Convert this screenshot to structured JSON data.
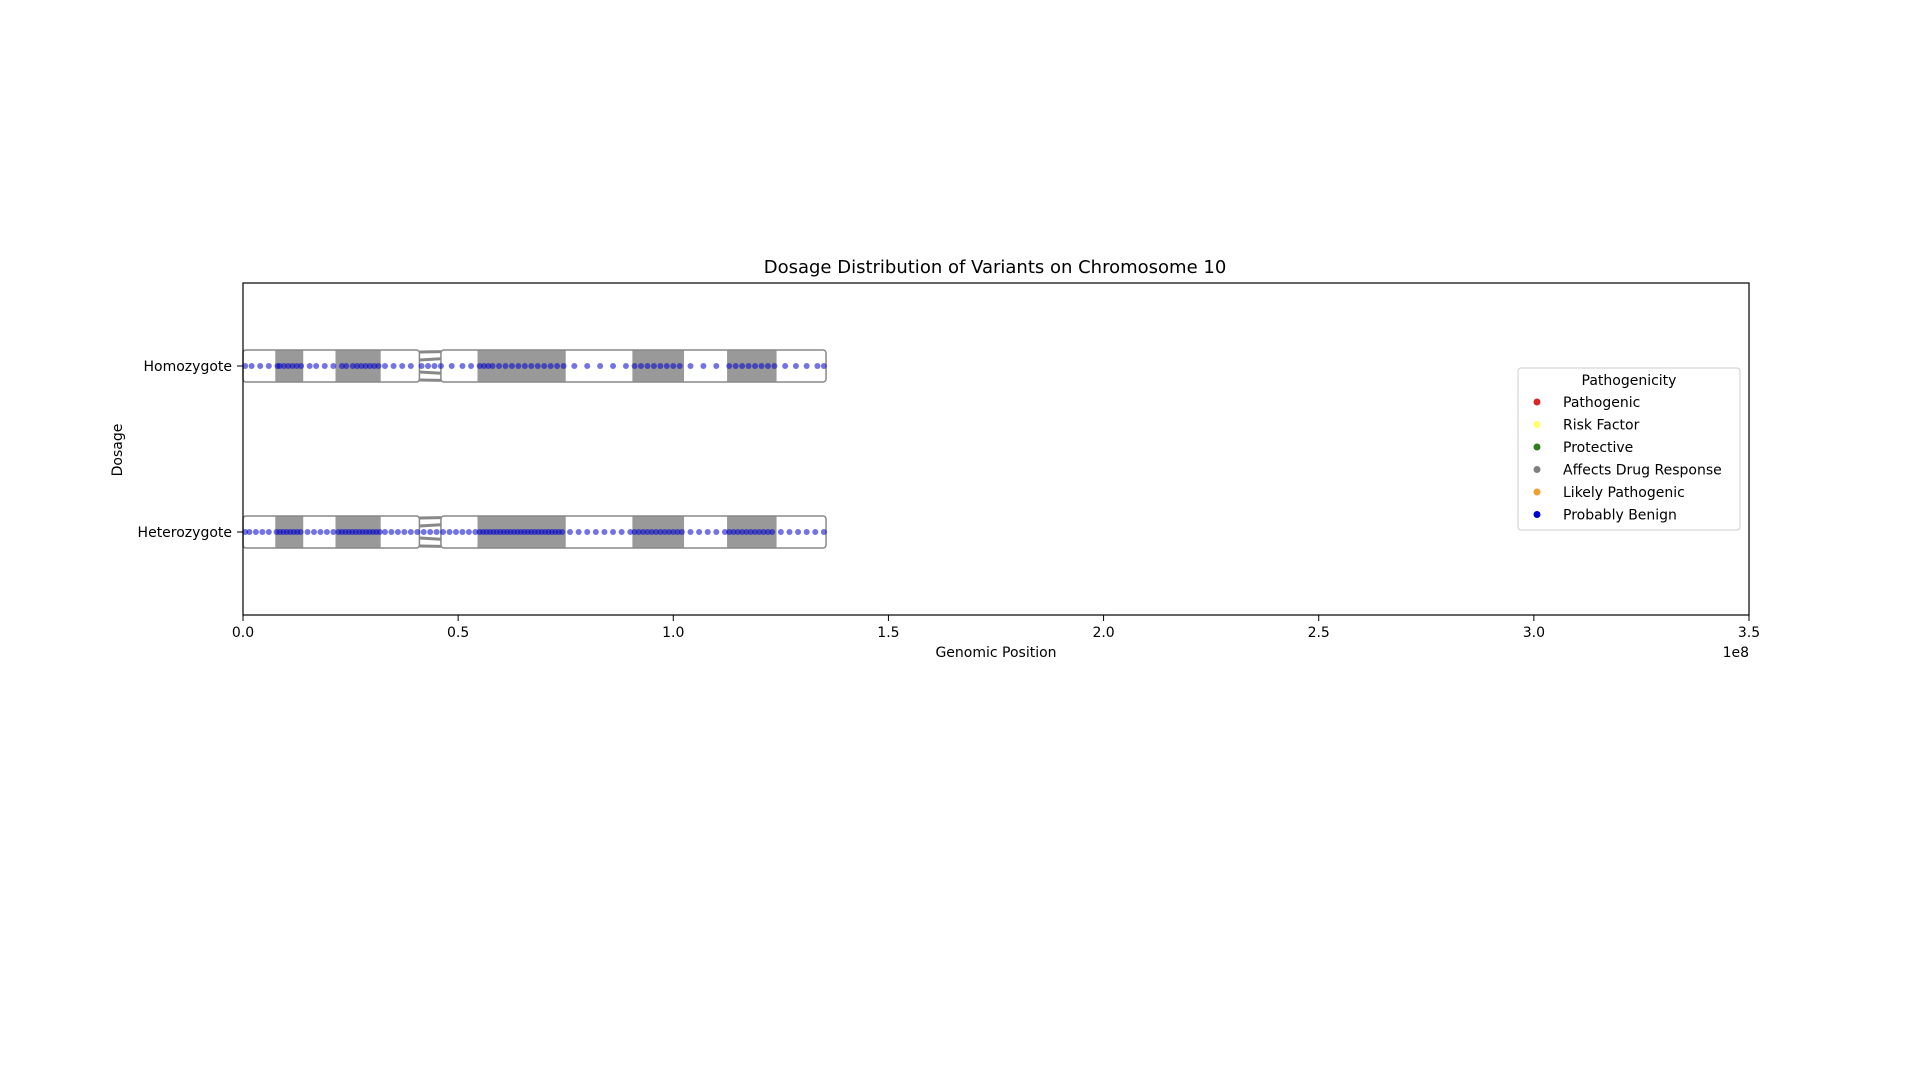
{
  "chart_data": {
    "type": "scatter",
    "title": "Dosage Distribution of Variants on Chromosome 10",
    "xlabel": "Genomic Position",
    "ylabel": "Dosage",
    "x_offset_label": "1e8",
    "xlim": [
      0,
      350000000
    ],
    "xticks": [
      0,
      50000000,
      100000000,
      150000000,
      200000000,
      250000000,
      300000000,
      350000000
    ],
    "xtick_labels": [
      "0.0",
      "0.5",
      "1.0",
      "1.5",
      "2.0",
      "2.5",
      "3.0",
      "3.5"
    ],
    "categories": [
      "Heterozygote",
      "Homozygote"
    ],
    "grid": false,
    "chromosome": {
      "length": 135500000,
      "centromere": [
        41000000,
        46000000
      ],
      "dark_bands": [
        [
          7500000,
          14000000
        ],
        [
          21500000,
          32000000
        ],
        [
          54500000,
          75000000
        ],
        [
          90500000,
          102500000
        ],
        [
          112500000,
          124000000
        ]
      ]
    },
    "legend": {
      "title": "Pathogenicity",
      "placement": "center-right",
      "entries": [
        {
          "label": "Pathogenic",
          "color": "#d62728"
        },
        {
          "label": "Risk Factor",
          "color": "#ffff66"
        },
        {
          "label": "Protective",
          "color": "#2e7d1f"
        },
        {
          "label": "Affects Drug Response",
          "color": "#808080"
        },
        {
          "label": "Likely Pathogenic",
          "color": "#f0a030"
        },
        {
          "label": "Probably Benign",
          "color": "#0000cc"
        }
      ]
    },
    "series": [
      {
        "name": "Probably Benign",
        "color": "#0000cc",
        "points": [
          {
            "dosage": "Homozygote",
            "x": [
              500000,
              2000000,
              4000000,
              6000000,
              8000000,
              8500000,
              9500000,
              10500000,
              11500000,
              12500000,
              13500000,
              15500000,
              17000000,
              19000000,
              21000000,
              23000000,
              24000000,
              25500000,
              26500000,
              27500000,
              28500000,
              29500000,
              30500000,
              31500000,
              33000000,
              35000000,
              37000000,
              39000000,
              41500000,
              43000000,
              44500000,
              46000000,
              48500000,
              51000000,
              53000000,
              55000000,
              56000000,
              57000000,
              58000000,
              59500000,
              61000000,
              62500000,
              64000000,
              65500000,
              67000000,
              68500000,
              70000000,
              71500000,
              73000000,
              74500000,
              77000000,
              80000000,
              83000000,
              86000000,
              89000000,
              91000000,
              92500000,
              94000000,
              95500000,
              97000000,
              98500000,
              100000000,
              101500000,
              104000000,
              107000000,
              110000000,
              113000000,
              114500000,
              116000000,
              117500000,
              119000000,
              120500000,
              122000000,
              123500000,
              126000000,
              128500000,
              131000000,
              133500000,
              135000000
            ]
          },
          {
            "dosage": "Heterozygote",
            "x": [
              500000,
              1500000,
              3000000,
              4500000,
              6000000,
              7800000,
              8600000,
              9400000,
              10200000,
              11000000,
              11800000,
              12600000,
              13400000,
              15000000,
              16500000,
              18000000,
              19500000,
              21000000,
              22200000,
              23000000,
              23800000,
              24600000,
              25400000,
              26200000,
              27000000,
              27800000,
              28600000,
              29400000,
              30200000,
              31000000,
              31800000,
              33000000,
              34500000,
              36000000,
              37500000,
              39000000,
              40500000,
              42000000,
              43500000,
              45000000,
              46500000,
              48000000,
              49500000,
              51000000,
              52500000,
              54000000,
              55000000,
              55800000,
              56600000,
              57400000,
              58200000,
              59000000,
              59800000,
              60600000,
              61400000,
              62200000,
              63000000,
              63800000,
              64600000,
              65400000,
              66200000,
              67000000,
              67800000,
              68600000,
              69400000,
              70200000,
              71000000,
              71800000,
              72600000,
              73400000,
              74200000,
              76000000,
              78000000,
              80000000,
              82000000,
              84000000,
              86000000,
              88000000,
              90000000,
              91000000,
              92000000,
              93000000,
              94000000,
              95000000,
              96000000,
              97000000,
              98000000,
              99000000,
              100000000,
              101000000,
              102000000,
              104000000,
              106000000,
              108000000,
              110000000,
              112000000,
              113000000,
              114000000,
              115000000,
              116000000,
              117000000,
              118000000,
              119000000,
              120000000,
              121000000,
              122000000,
              123000000,
              125000000,
              127000000,
              129000000,
              131000000,
              133000000,
              135000000
            ]
          }
        ]
      }
    ]
  }
}
